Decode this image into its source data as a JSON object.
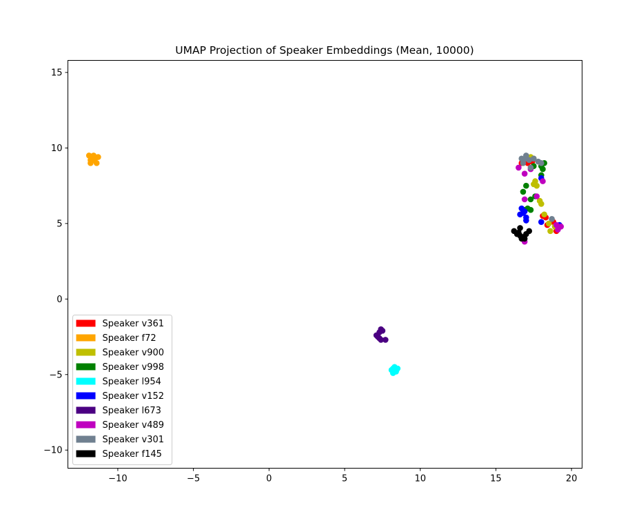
{
  "chart_data": {
    "type": "scatter",
    "title": "UMAP Projection of Speaker Embeddings (Mean, 10000)",
    "xlabel": "",
    "ylabel": "",
    "xlim": [
      -13.3,
      20.7
    ],
    "ylim": [
      -11.2,
      15.8
    ],
    "xticks": [
      -10,
      -5,
      0,
      5,
      10,
      15,
      20
    ],
    "yticks": [
      -10,
      -5,
      0,
      5,
      10,
      15
    ],
    "xtick_labels": [
      "−10",
      "−5",
      "0",
      "5",
      "10",
      "15",
      "20"
    ],
    "ytick_labels": [
      "−10",
      "−5",
      "0",
      "5",
      "10",
      "15"
    ],
    "grid": false,
    "legend_position": "lower-left",
    "series": [
      {
        "name": "Speaker v361",
        "color": "#ff0000",
        "points": [
          [
            16.7,
            9.0
          ],
          [
            17.1,
            9.0
          ],
          [
            17.4,
            9.1
          ],
          [
            18.1,
            5.5
          ],
          [
            18.3,
            5.4
          ],
          [
            18.4,
            4.9
          ],
          [
            18.8,
            5.1
          ],
          [
            19.0,
            4.5
          ],
          [
            19.1,
            4.7
          ]
        ]
      },
      {
        "name": "Speaker f72",
        "color": "#ffa500",
        "points": [
          [
            -11.9,
            9.5
          ],
          [
            -11.6,
            9.5
          ],
          [
            -11.3,
            9.4
          ],
          [
            -11.8,
            9.2
          ],
          [
            -11.5,
            9.3
          ],
          [
            -11.8,
            9.0
          ],
          [
            -11.4,
            9.0
          ],
          [
            -11.6,
            9.2
          ]
        ]
      },
      {
        "name": "Speaker v900",
        "color": "#bfbf00",
        "points": [
          [
            17.3,
            9.4
          ],
          [
            17.5,
            9.3
          ],
          [
            17.6,
            7.8
          ],
          [
            17.7,
            7.5
          ],
          [
            17.5,
            7.6
          ],
          [
            17.9,
            6.5
          ],
          [
            18.0,
            6.3
          ],
          [
            18.2,
            5.6
          ],
          [
            18.5,
            5.0
          ],
          [
            18.6,
            4.5
          ],
          [
            18.9,
            4.8
          ]
        ]
      },
      {
        "name": "Speaker v998",
        "color": "#008000",
        "points": [
          [
            17.5,
            8.8
          ],
          [
            18.0,
            8.8
          ],
          [
            18.2,
            9.0
          ],
          [
            18.1,
            8.6
          ],
          [
            18.0,
            8.2
          ],
          [
            16.8,
            7.1
          ],
          [
            17.0,
            7.5
          ],
          [
            17.3,
            6.6
          ],
          [
            17.6,
            6.8
          ],
          [
            17.1,
            6.0
          ],
          [
            17.3,
            5.9
          ],
          [
            16.9,
            5.9
          ]
        ]
      },
      {
        "name": "Speaker l954",
        "color": "#00ffff",
        "points": [
          [
            8.1,
            -4.7
          ],
          [
            8.2,
            -4.9
          ],
          [
            8.3,
            -4.5
          ],
          [
            8.4,
            -4.8
          ],
          [
            8.5,
            -4.6
          ],
          [
            8.2,
            -4.6
          ],
          [
            8.3,
            -4.8
          ]
        ]
      },
      {
        "name": "Speaker v152",
        "color": "#0000ff",
        "points": [
          [
            16.7,
            6.0
          ],
          [
            16.9,
            5.8
          ],
          [
            16.6,
            5.6
          ],
          [
            17.0,
            5.4
          ],
          [
            17.0,
            5.2
          ],
          [
            18.0,
            5.1
          ],
          [
            19.2,
            4.9
          ],
          [
            18.0,
            8.0
          ],
          [
            16.8,
            5.7
          ]
        ]
      },
      {
        "name": "Speaker l673",
        "color": "#4b0082",
        "points": [
          [
            7.1,
            -2.4
          ],
          [
            7.3,
            -2.2
          ],
          [
            7.4,
            -2.0
          ],
          [
            7.5,
            -2.1
          ],
          [
            7.4,
            -2.7
          ],
          [
            7.7,
            -2.7
          ],
          [
            7.2,
            -2.5
          ],
          [
            7.3,
            -2.6
          ]
        ]
      },
      {
        "name": "Speaker v489",
        "color": "#bf00bf",
        "points": [
          [
            16.5,
            8.7
          ],
          [
            16.9,
            8.3
          ],
          [
            17.3,
            8.6
          ],
          [
            18.1,
            7.8
          ],
          [
            17.7,
            6.8
          ],
          [
            16.9,
            6.6
          ],
          [
            19.0,
            4.9
          ],
          [
            19.3,
            4.8
          ],
          [
            16.9,
            3.8
          ],
          [
            19.1,
            4.6
          ]
        ]
      },
      {
        "name": "Speaker v301",
        "color": "#708090",
        "points": [
          [
            16.7,
            9.3
          ],
          [
            17.0,
            9.5
          ],
          [
            17.2,
            9.2
          ],
          [
            17.5,
            9.3
          ],
          [
            17.8,
            9.1
          ],
          [
            18.0,
            9.0
          ],
          [
            17.3,
            8.7
          ],
          [
            16.8,
            9.0
          ],
          [
            18.7,
            5.3
          ],
          [
            17.0,
            9.3
          ]
        ]
      },
      {
        "name": "Speaker f145",
        "color": "#000000",
        "points": [
          [
            16.2,
            4.5
          ],
          [
            16.5,
            4.4
          ],
          [
            16.6,
            4.7
          ],
          [
            16.6,
            4.2
          ],
          [
            16.8,
            4.1
          ],
          [
            17.0,
            4.3
          ],
          [
            17.2,
            4.5
          ],
          [
            16.9,
            4.0
          ],
          [
            16.7,
            4.0
          ],
          [
            16.4,
            4.3
          ]
        ]
      }
    ]
  }
}
